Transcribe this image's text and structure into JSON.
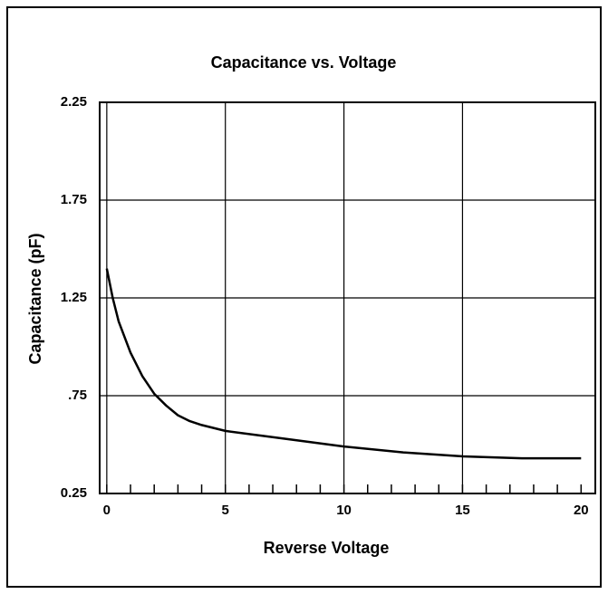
{
  "chart_data": {
    "type": "line",
    "title": "Capacitance vs. Voltage",
    "xlabel": "Reverse Voltage",
    "ylabel": "Capacitance (pF)",
    "x": [
      0,
      0.25,
      0.5,
      1,
      1.5,
      2,
      2.5,
      3,
      3.5,
      4,
      5,
      7.5,
      10,
      12.5,
      15,
      17.5,
      20
    ],
    "series": [
      {
        "name": "Capacitance",
        "color": "#000000",
        "values": [
          1.4,
          1.25,
          1.13,
          0.97,
          0.85,
          0.76,
          0.7,
          0.65,
          0.62,
          0.6,
          0.57,
          0.53,
          0.49,
          0.46,
          0.44,
          0.43,
          0.43
        ]
      }
    ],
    "xlim": [
      -0.3,
      20.6
    ],
    "ylim": [
      0.25,
      2.25
    ],
    "xticks": [
      0,
      5,
      10,
      15,
      20
    ],
    "minor_xticks": [
      0,
      1,
      2,
      3,
      4,
      5,
      6,
      7,
      8,
      9,
      10,
      11,
      12,
      13,
      14,
      15,
      16,
      17,
      18,
      19,
      20
    ],
    "xgrid": [
      0,
      5,
      10,
      15
    ],
    "yticks": [
      0.25,
      {
        "value": 0.75,
        "label": ".75"
      },
      1.25,
      1.75,
      2.25
    ],
    "grid": true
  }
}
